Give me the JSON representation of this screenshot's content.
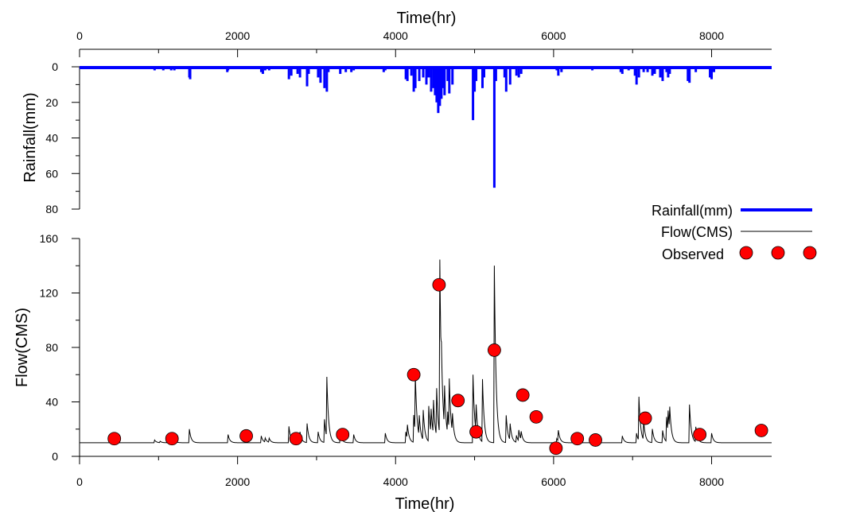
{
  "chart_data": [
    {
      "type": "bar",
      "panel": "rainfall",
      "xlabel": "Time(hr)",
      "ylabel": "Rainfall(mm)",
      "xlim": [
        0,
        8760
      ],
      "ylim": [
        0,
        80
      ],
      "y_inverted": true,
      "x_ticks": [
        0,
        2000,
        4000,
        6000,
        8000
      ],
      "y_ticks": [
        0,
        20,
        40,
        60,
        80
      ],
      "color": "#0000ff",
      "series": [
        {
          "name": "Rainfall(mm)",
          "x": [
            950,
            1020,
            1060,
            1110,
            1160,
            1200,
            1390,
            1400,
            1870,
            1880,
            2230,
            2300,
            2320,
            2350,
            2400,
            2650,
            2680,
            2760,
            2790,
            2880,
            2900,
            3020,
            3050,
            3100,
            3130,
            3150,
            3300,
            3370,
            3440,
            3470,
            3650,
            3850,
            3870,
            4130,
            4150,
            4200,
            4230,
            4250,
            4300,
            4350,
            4390,
            4420,
            4450,
            4480,
            4500,
            4520,
            4540,
            4560,
            4580,
            4600,
            4620,
            4660,
            4680,
            4720,
            4980,
            5000,
            5020,
            5100,
            5120,
            5250,
            5270,
            5380,
            5400,
            5450,
            5530,
            5560,
            5590,
            6040,
            6060,
            6100,
            6490,
            6850,
            6870,
            6950,
            7030,
            7050,
            7080,
            7140,
            7190,
            7250,
            7280,
            7350,
            7380,
            7430,
            7450,
            7470,
            7700,
            7720,
            7800,
            7980,
            8000,
            8030
          ],
          "values": [
            2,
            1,
            2,
            1,
            2,
            2,
            6,
            7,
            3,
            2,
            1,
            3,
            4,
            2,
            2,
            7,
            5,
            4,
            6,
            11,
            4,
            6,
            9,
            12,
            14,
            3,
            4,
            3,
            3,
            2,
            1,
            3,
            2,
            7,
            8,
            5,
            14,
            12,
            8,
            6,
            10,
            6,
            14,
            12,
            16,
            20,
            26,
            22,
            18,
            12,
            16,
            8,
            15,
            10,
            30,
            14,
            8,
            12,
            6,
            68,
            8,
            6,
            14,
            10,
            5,
            6,
            4,
            2,
            5,
            3,
            2,
            3,
            4,
            2,
            5,
            10,
            6,
            3,
            3,
            5,
            4,
            6,
            8,
            3,
            6,
            4,
            8,
            9,
            3,
            6,
            7,
            3
          ]
        }
      ]
    },
    {
      "type": "line",
      "panel": "flow",
      "xlabel": "Time(hr)",
      "ylabel": "Flow(CMS)",
      "xlim": [
        0,
        8760
      ],
      "ylim": [
        0,
        160
      ],
      "x_ticks": [
        0,
        2000,
        4000,
        6000,
        8000
      ],
      "y_ticks": [
        0,
        40,
        80,
        120,
        160
      ],
      "series": [
        {
          "name": "Flow(CMS)",
          "color": "#000000",
          "peaks": {
            "t": [
              950,
              1020,
              1110,
              1200,
              1390,
              1880,
              2300,
              2350,
              2400,
              2650,
              2790,
              2880,
              3020,
              3100,
              3130,
              3300,
              3470,
              3870,
              4130,
              4150,
              4230,
              4250,
              4300,
              4350,
              4420,
              4450,
              4480,
              4520,
              4560,
              4580,
              4620,
              4660,
              4680,
              4720,
              4980,
              5020,
              5100,
              5250,
              5400,
              5450,
              5530,
              5560,
              5590,
              6040,
              6060,
              6490,
              6870,
              7050,
              7080,
              7140,
              7250,
              7380,
              7430,
              7450,
              7470,
              7720,
              7800,
              8000
            ],
            "q": [
              12,
              11,
              13,
              12,
              20,
              16,
              15,
              13,
              13,
              22,
              18,
              24,
              18,
              27,
              54,
              17,
              16,
              17,
              18,
              20,
              30,
              52,
              25,
              32,
              36,
              28,
              35,
              45,
              138,
              30,
              40,
              26,
              48,
              24,
              60,
              30,
              56,
              140,
              30,
              22,
              15,
              18,
              16,
              13,
              18,
              13,
              15,
              17,
              42,
              24,
              20,
              19,
              28,
              26,
              27,
              38,
              21,
              17
            ]
          },
          "baseflow": 10
        },
        {
          "name": "Observed",
          "type": "scatter",
          "color": "#ff0000",
          "x": [
            440,
            1170,
            2110,
            2740,
            3330,
            4230,
            4550,
            4790,
            5020,
            5250,
            5610,
            5780,
            6030,
            6300,
            6530,
            7160,
            7850,
            8630
          ],
          "values": [
            13,
            13,
            15,
            13,
            16,
            60,
            126,
            41,
            18,
            78,
            45,
            29,
            6,
            13,
            12,
            28,
            16,
            19
          ]
        }
      ]
    }
  ],
  "top_axis": {
    "title": "Time(hr)",
    "tick_labels": [
      "0",
      "2000",
      "4000",
      "6000",
      "8000"
    ]
  },
  "rain_axis": {
    "title": "Rainfall(mm)",
    "tick_labels": [
      "0",
      "20",
      "40",
      "60",
      "80"
    ]
  },
  "flow_axis": {
    "title": "Flow(CMS)",
    "tick_labels": [
      "0",
      "40",
      "80",
      "120",
      "160"
    ]
  },
  "bottom_axis": {
    "title": "Time(hr)",
    "tick_labels": [
      "0",
      "2000",
      "4000",
      "6000",
      "8000"
    ]
  },
  "legend": {
    "position": "right",
    "rain_label": "Rainfall(mm)",
    "flow_label": "Flow(CMS)",
    "obs_label": "Observed",
    "rain_color": "#0000ff",
    "flow_color": "#000000",
    "obs_color": "#ff0000"
  }
}
